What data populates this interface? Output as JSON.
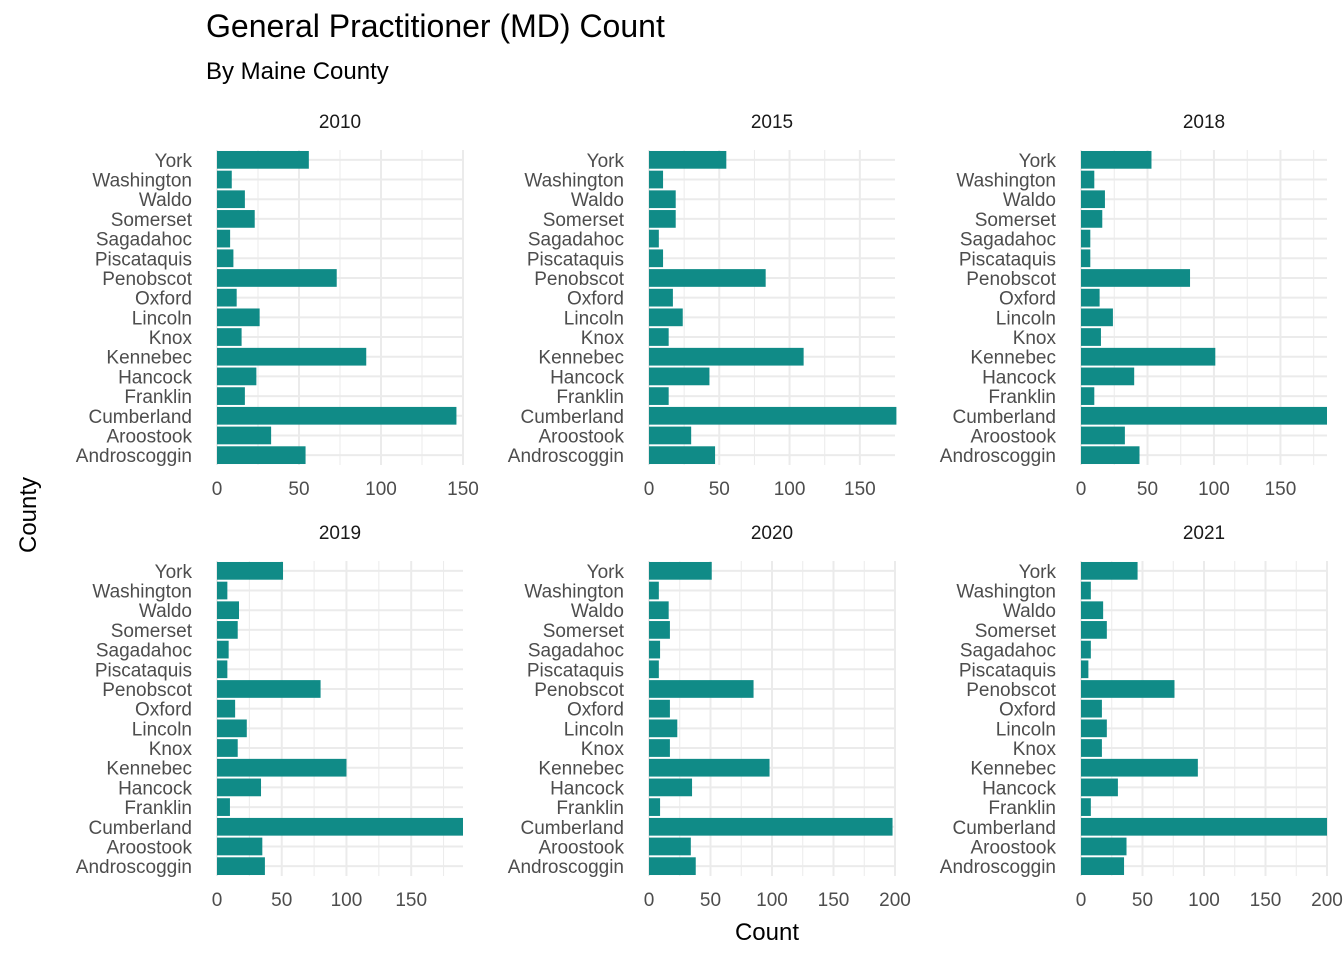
{
  "chart_data": {
    "type": "bar",
    "title": "General Practitioner (MD) Count",
    "subtitle": "By Maine County",
    "xlabel": "Count",
    "ylabel": "County",
    "orientation": "horizontal",
    "grid": true,
    "bar_color": "#108b87",
    "categories": [
      "Androscoggin",
      "Aroostook",
      "Cumberland",
      "Franklin",
      "Hancock",
      "Kennebec",
      "Knox",
      "Lincoln",
      "Oxford",
      "Penobscot",
      "Piscataquis",
      "Sagadahoc",
      "Somerset",
      "Waldo",
      "Washington",
      "York"
    ],
    "panels": [
      {
        "facet": "2010",
        "xlim": [
          0,
          150
        ],
        "xticks": [
          0,
          50,
          100,
          150
        ],
        "values": [
          54,
          33,
          146,
          17,
          24,
          91,
          15,
          26,
          12,
          73,
          10,
          8,
          23,
          17,
          9,
          56
        ]
      },
      {
        "facet": "2015",
        "xlim": [
          0,
          175
        ],
        "xticks": [
          0,
          50,
          100,
          150
        ],
        "values": [
          47,
          30,
          176,
          14,
          43,
          110,
          14,
          24,
          17,
          83,
          10,
          7,
          19,
          19,
          10,
          55
        ]
      },
      {
        "facet": "2018",
        "xlim": [
          0,
          185
        ],
        "xticks": [
          0,
          50,
          100,
          150
        ],
        "values": [
          44,
          33,
          185,
          10,
          40,
          101,
          15,
          24,
          14,
          82,
          7,
          7,
          16,
          18,
          10,
          53
        ]
      },
      {
        "facet": "2019",
        "xlim": [
          0,
          190
        ],
        "xticks": [
          0,
          50,
          100,
          150
        ],
        "values": [
          37,
          35,
          190,
          10,
          34,
          100,
          16,
          23,
          14,
          80,
          8,
          9,
          16,
          17,
          8,
          51
        ]
      },
      {
        "facet": "2020",
        "xlim": [
          0,
          200
        ],
        "xticks": [
          0,
          50,
          100,
          150,
          200
        ],
        "values": [
          38,
          34,
          198,
          9,
          35,
          98,
          17,
          23,
          17,
          85,
          8,
          9,
          17,
          16,
          8,
          51
        ]
      },
      {
        "facet": "2021",
        "xlim": [
          0,
          200
        ],
        "xticks": [
          0,
          50,
          100,
          150,
          200
        ],
        "values": [
          35,
          37,
          200,
          8,
          30,
          95,
          17,
          21,
          17,
          76,
          6,
          8,
          21,
          18,
          8,
          46
        ]
      }
    ]
  }
}
